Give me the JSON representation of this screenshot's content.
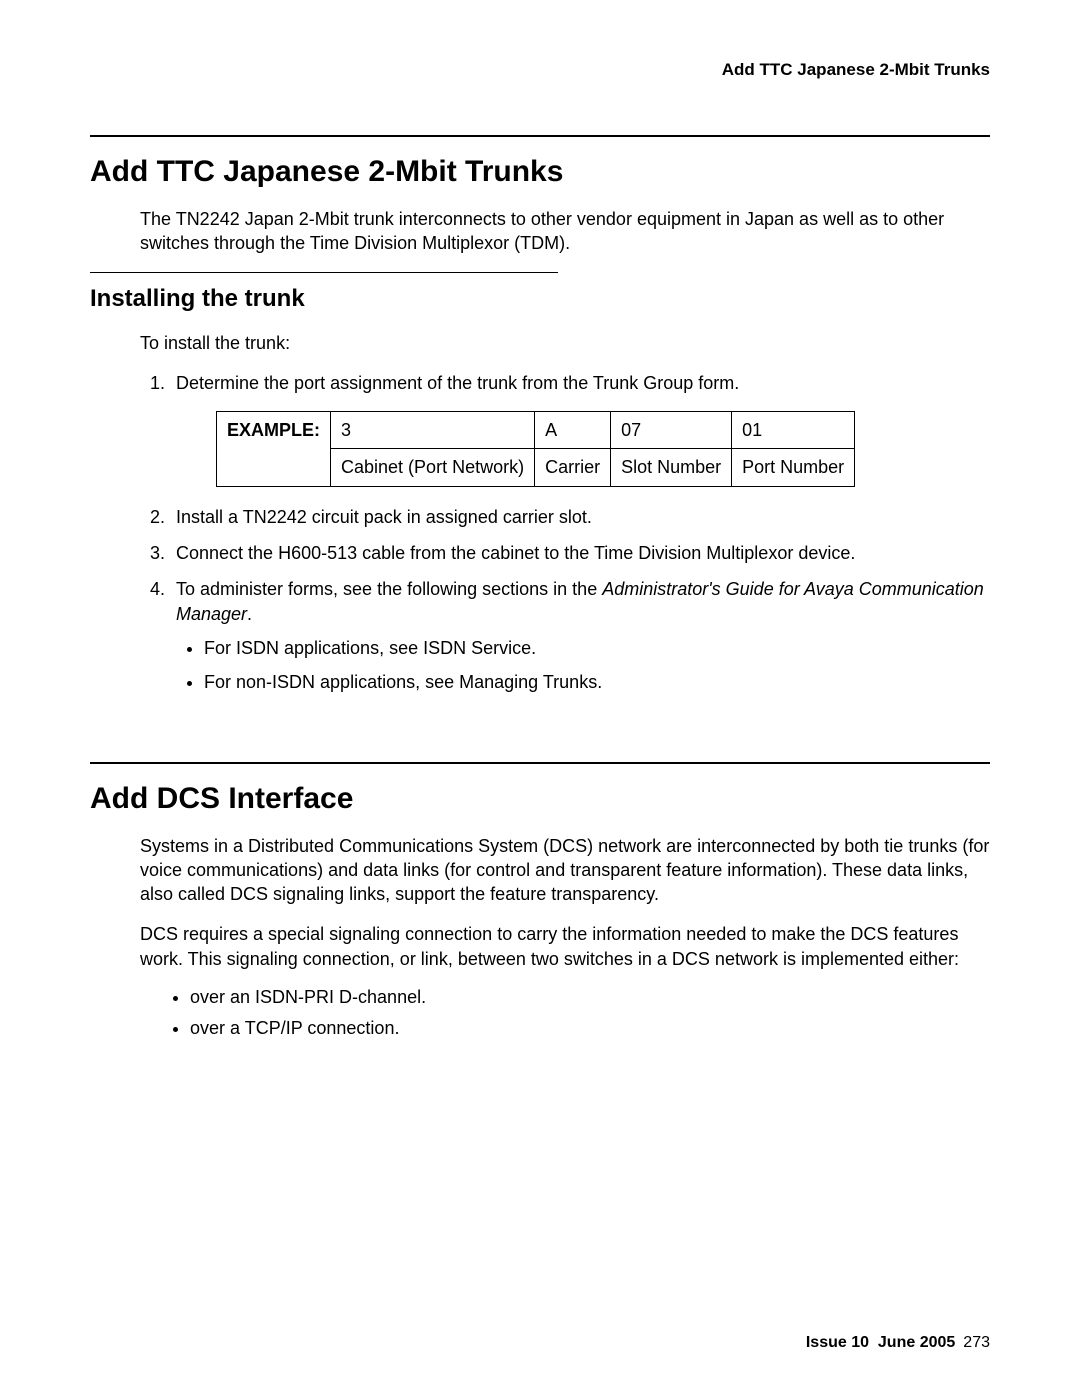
{
  "header": {
    "running_title": "Add TTC Japanese 2-Mbit Trunks"
  },
  "section1": {
    "heading": "Add TTC Japanese 2-Mbit Trunks",
    "intro": "The TN2242 Japan 2-Mbit trunk interconnects to other vendor equipment in Japan as well as to other switches through the Time Division Multiplexor (TDM).",
    "sub_heading": "Installing the trunk",
    "lead": "To install the trunk:",
    "step1": "Determine the port assignment of the trunk from the Trunk Group form.",
    "table": {
      "label": "EXAMPLE:",
      "row1": {
        "c1": "3",
        "c2": "A",
        "c3": "07",
        "c4": "01"
      },
      "row2": {
        "c1": "Cabinet (Port Network)",
        "c2": "Carrier",
        "c3": "Slot Number",
        "c4": "Port Number"
      },
      "col_widths": [
        "120px",
        "180px",
        "120px",
        "100px",
        "100px"
      ]
    },
    "step2": "Install a TN2242 circuit pack in assigned carrier slot.",
    "step3": "Connect the H600-513 cable from the cabinet to the Time Division Multiplexor device.",
    "step4_prefix": "To administer forms, see the following sections in the ",
    "step4_italic": "Administrator's Guide for Avaya Communication Manager",
    "step4_suffix": ".",
    "step4_sub1": "For ISDN applications, see ISDN Service.",
    "step4_sub2": "For non-ISDN applications, see Managing Trunks."
  },
  "section2": {
    "heading": "Add DCS Interface",
    "para1": "Systems in a Distributed Communications System (DCS) network are interconnected by both tie trunks (for voice communications) and data links (for control and transparent feature information). These data links, also called DCS signaling links, support the feature transparency.",
    "para2": "DCS requires a special signaling connection to carry the information needed to make the DCS features work. This signaling connection, or link, between two switches in a DCS network is implemented either:",
    "bullet1": "over an ISDN-PRI D-channel.",
    "bullet2": "over a TCP/IP connection."
  },
  "footer": {
    "issue": "Issue 10",
    "date": "June 2005",
    "page": "273"
  }
}
